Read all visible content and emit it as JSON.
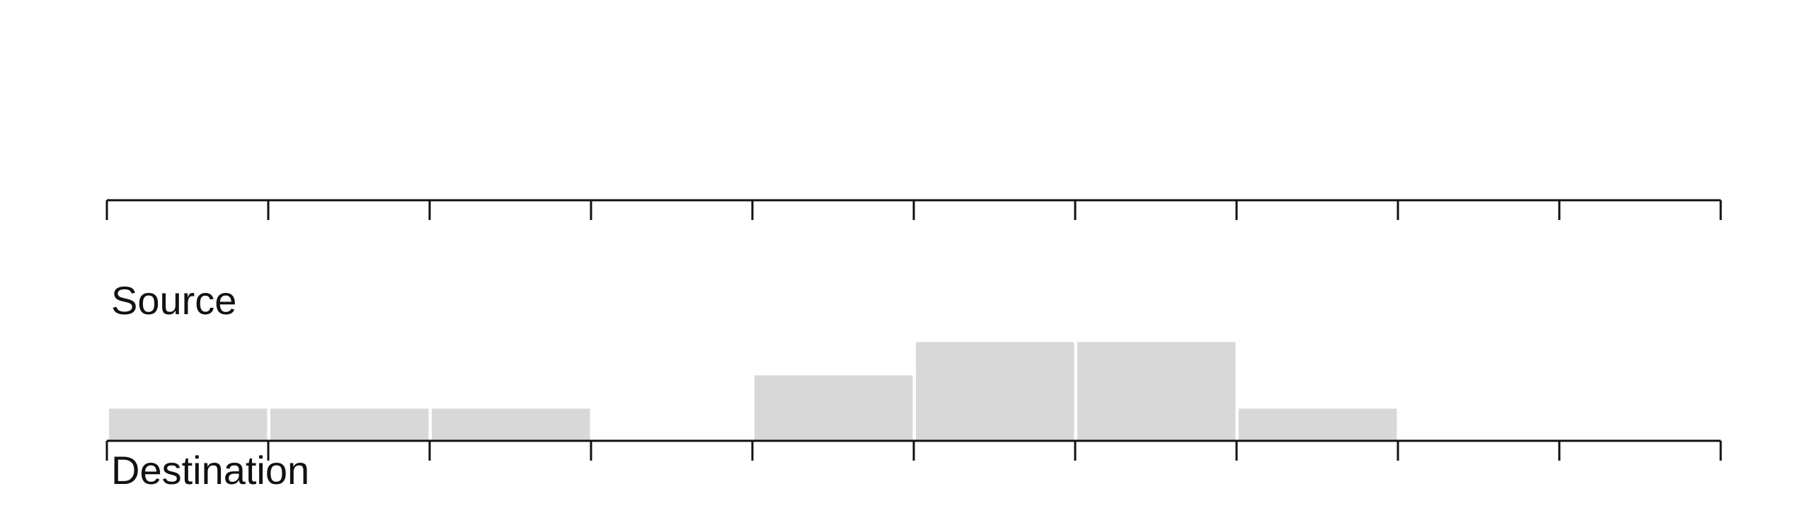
{
  "chart_data": {
    "type": "bar",
    "labels": {
      "source": "Source",
      "destination": "Destination"
    },
    "bins": 10,
    "values": [
      1,
      1,
      1,
      0,
      2,
      3,
      3,
      1,
      0,
      0
    ],
    "ylim": [
      0,
      3
    ],
    "axis_label": ""
  },
  "colors": {
    "bar": "#d8d8d8",
    "axis": "#111111",
    "background": "#ffffff"
  }
}
